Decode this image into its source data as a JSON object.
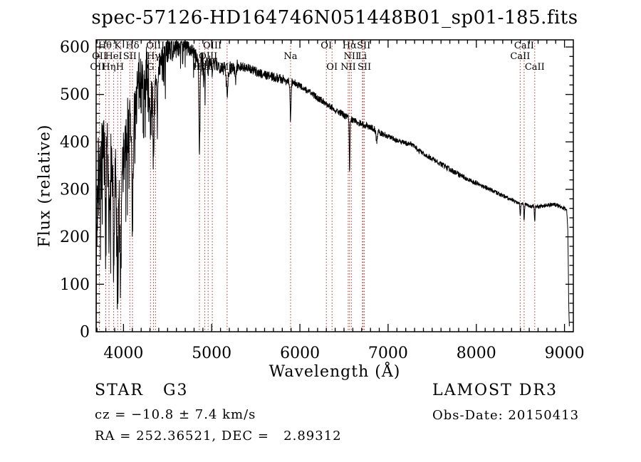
{
  "chart_data": {
    "type": "line",
    "title": "spec-57126-HD164746N051448B01_sp01-185.fits",
    "xlabel": "Wavelength (Å)",
    "ylabel": "Flux (relative)",
    "xlim": [
      3690,
      9100
    ],
    "ylim": [
      0,
      615
    ],
    "x_ticks": [
      4000,
      5000,
      6000,
      7000,
      8000,
      9000
    ],
    "y_ticks": [
      0,
      100,
      200,
      300,
      400,
      500,
      600
    ],
    "x_minor_step": 100,
    "y_minor_step": 20,
    "grid": false,
    "series": [
      {
        "name": "spectrum",
        "color": "#000000",
        "sample_step_angstrom": 2.5,
        "continuum_points": [
          [
            3690,
            140
          ],
          [
            3705,
            290
          ],
          [
            3725,
            330
          ],
          [
            3745,
            360
          ],
          [
            3765,
            345
          ],
          [
            3785,
            350
          ],
          [
            3805,
            330
          ],
          [
            3825,
            345
          ],
          [
            3845,
            330
          ],
          [
            3865,
            345
          ],
          [
            3885,
            330
          ],
          [
            3905,
            300
          ],
          [
            3925,
            280
          ],
          [
            3945,
            265
          ],
          [
            3965,
            265
          ],
          [
            3985,
            320
          ],
          [
            4005,
            380
          ],
          [
            4035,
            430
          ],
          [
            4065,
            440
          ],
          [
            4095,
            430
          ],
          [
            4125,
            460
          ],
          [
            4155,
            505
          ],
          [
            4185,
            525
          ],
          [
            4215,
            535
          ],
          [
            4245,
            540
          ],
          [
            4275,
            525
          ],
          [
            4305,
            520
          ],
          [
            4335,
            525
          ],
          [
            4365,
            545
          ],
          [
            4395,
            560
          ],
          [
            4425,
            570
          ],
          [
            4455,
            580
          ],
          [
            4485,
            590
          ],
          [
            4520,
            595
          ],
          [
            4560,
            600
          ],
          [
            4600,
            602
          ],
          [
            4650,
            605
          ],
          [
            4700,
            602
          ],
          [
            4750,
            597
          ],
          [
            4800,
            588
          ],
          [
            4850,
            572
          ],
          [
            4900,
            572
          ],
          [
            4950,
            568
          ],
          [
            5000,
            566
          ],
          [
            5050,
            562
          ],
          [
            5100,
            560
          ],
          [
            5150,
            554
          ],
          [
            5200,
            556
          ],
          [
            5300,
            560
          ],
          [
            5400,
            556
          ],
          [
            5500,
            548
          ],
          [
            5600,
            542
          ],
          [
            5700,
            537
          ],
          [
            5800,
            532
          ],
          [
            5900,
            526
          ],
          [
            6000,
            518
          ],
          [
            6100,
            506
          ],
          [
            6200,
            493
          ],
          [
            6300,
            481
          ],
          [
            6400,
            468
          ],
          [
            6500,
            456
          ],
          [
            6600,
            446
          ],
          [
            6700,
            438
          ],
          [
            6800,
            431
          ],
          [
            6900,
            421
          ],
          [
            7000,
            412
          ],
          [
            7100,
            403
          ],
          [
            7200,
            397
          ],
          [
            7260,
            396
          ],
          [
            7320,
            386
          ],
          [
            7400,
            375
          ],
          [
            7500,
            364
          ],
          [
            7600,
            353
          ],
          [
            7700,
            342
          ],
          [
            7800,
            332
          ],
          [
            7900,
            322
          ],
          [
            8000,
            313
          ],
          [
            8100,
            305
          ],
          [
            8200,
            296
          ],
          [
            8300,
            287
          ],
          [
            8400,
            278
          ],
          [
            8500,
            271
          ],
          [
            8600,
            266
          ],
          [
            8700,
            263
          ],
          [
            8800,
            267
          ],
          [
            8900,
            268
          ],
          [
            8950,
            263
          ],
          [
            9000,
            259
          ],
          [
            9025,
            256
          ],
          [
            9038,
            210
          ],
          [
            9048,
            60
          ],
          [
            9055,
            6
          ]
        ],
        "absorption_features": [
          [
            3798,
            6,
            150
          ],
          [
            3835,
            6,
            170
          ],
          [
            3889,
            6,
            180
          ],
          [
            3934,
            7,
            170
          ],
          [
            3969,
            7,
            170
          ],
          [
            4102,
            7,
            220
          ],
          [
            4227,
            6,
            80
          ],
          [
            4306,
            9,
            120
          ],
          [
            4340,
            7,
            190
          ],
          [
            4383,
            6,
            90
          ],
          [
            4861,
            6,
            190
          ],
          [
            4922,
            5,
            40
          ],
          [
            4959,
            4,
            25
          ],
          [
            5007,
            4,
            25
          ],
          [
            5175,
            9,
            48
          ],
          [
            5270,
            6,
            30
          ],
          [
            5894,
            5,
            85
          ],
          [
            6563,
            4,
            108
          ],
          [
            6870,
            7,
            22
          ],
          [
            8498,
            4,
            28
          ],
          [
            8542,
            4,
            34
          ],
          [
            8662,
            4,
            30
          ]
        ],
        "noise_regions": [
          [
            3690,
            3960,
            105
          ],
          [
            3960,
            4350,
            70
          ],
          [
            4350,
            4700,
            25
          ],
          [
            4700,
            5300,
            16
          ],
          [
            5300,
            6000,
            10
          ],
          [
            6000,
            7000,
            7
          ],
          [
            7000,
            8000,
            5.5
          ],
          [
            8000,
            9100,
            4.5
          ]
        ],
        "forest": {
          "max_wavelength": 4950,
          "probability": 0.13,
          "amplitudes": [
            [
              4100,
              130
            ],
            [
              4500,
              95
            ],
            [
              4950,
              55
            ]
          ]
        }
      }
    ],
    "spectral_lines": {
      "color": "#a83232",
      "wavelengths": [
        3727,
        3798,
        3835,
        3889,
        3934,
        3969,
        4072,
        4102,
        4306,
        4340,
        4363,
        4861,
        4922,
        4959,
        5007,
        5175,
        5894,
        6300,
        6364,
        6548,
        6563,
        6583,
        6708,
        6717,
        6731,
        8498,
        8542,
        8662
      ],
      "label_rows": [
        [
          [
            "Hθ",
            3790
          ],
          [
            "K",
            3934
          ],
          [
            "Hδ",
            4102
          ],
          [
            "OIII",
            4363
          ],
          [
            "OIII",
            5007
          ],
          [
            "OI",
            6300
          ],
          [
            "Hα",
            6563
          ],
          [
            "SII",
            6724
          ],
          [
            "CaII",
            8542
          ]
        ],
        [
          [
            "OII",
            3727
          ],
          [
            "HeI",
            3889
          ],
          [
            "SII",
            4072
          ],
          [
            "Hγ",
            4340
          ],
          [
            "OIII",
            4959
          ],
          [
            "Na",
            5894
          ],
          [
            "NII",
            6583
          ],
          [
            "Li",
            6708
          ],
          [
            "CaII",
            8498
          ]
        ],
        [
          [
            "OII",
            3705
          ],
          [
            "Hη",
            3835
          ],
          [
            "H",
            3960
          ],
          [
            "G",
            4306
          ],
          [
            "Hβ",
            4861
          ],
          [
            "HeI",
            4922
          ],
          [
            "Mg",
            5175
          ],
          [
            "OI",
            6364
          ],
          [
            "NII",
            6548
          ],
          [
            "SII",
            6731
          ],
          [
            "CaII",
            8662
          ]
        ]
      ]
    }
  },
  "annotations": {
    "classification": "STAR   G3",
    "cz": "cz = −10.8 ± 7.4 km/s",
    "ra_dec": "RA = 252.36521, DEC =   2.89312",
    "survey": "LAMOST DR3",
    "obs_date": "Obs-Date: 20150413"
  }
}
